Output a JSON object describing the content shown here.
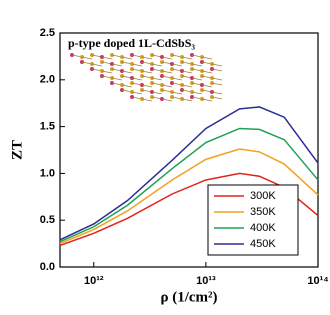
{
  "chart_data": {
    "type": "line",
    "title": "p-type doped 1L-CdSbS₃",
    "x_label": "ρ (1/cm²)",
    "y_label": "ZT",
    "x": [
      500000000000.0,
      1000000000000.0,
      2000000000000.0,
      5000000000000.0,
      10000000000000.0,
      20000000000000.0,
      30000000000000.0,
      50000000000000.0,
      100000000000000.0
    ],
    "series": [
      {
        "name": "300K",
        "color": "#e2231a",
        "values": [
          0.23,
          0.36,
          0.52,
          0.78,
          0.93,
          1.0,
          0.97,
          0.85,
          0.55
        ]
      },
      {
        "name": "350K",
        "color": "#f0a21e",
        "values": [
          0.25,
          0.4,
          0.6,
          0.93,
          1.15,
          1.26,
          1.23,
          1.1,
          0.77
        ]
      },
      {
        "name": "400K",
        "color": "#1fa055",
        "values": [
          0.27,
          0.43,
          0.66,
          1.05,
          1.33,
          1.48,
          1.47,
          1.36,
          0.93
        ]
      },
      {
        "name": "450K",
        "color": "#2b2f8f",
        "values": [
          0.29,
          0.46,
          0.71,
          1.14,
          1.48,
          1.69,
          1.71,
          1.6,
          1.11
        ]
      }
    ],
    "x_log": true,
    "xlim": [
      500000000000.0,
      100000000000000.0
    ],
    "xticks": [
      {
        "value": 1000000000000.0,
        "label": "10¹²"
      },
      {
        "value": 10000000000000.0,
        "label": "10¹³"
      },
      {
        "value": 100000000000000.0,
        "label": "10¹⁴"
      }
    ],
    "ylim": [
      0,
      2.5
    ],
    "yticks": [
      {
        "value": 0,
        "label": "0.0"
      },
      0.5,
      {
        "value": 1,
        "label": "1.0"
      },
      1.5,
      {
        "value": 2,
        "label": "2.0"
      },
      2.5
    ],
    "legend": "lower right"
  }
}
